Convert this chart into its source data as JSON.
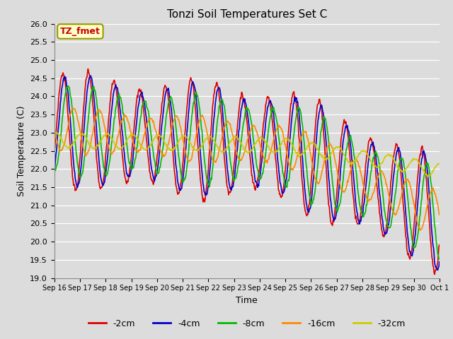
{
  "title": "Tonzi Soil Temperatures Set C",
  "xlabel": "Time",
  "ylabel": "Soil Temperature (C)",
  "ylim": [
    19.0,
    26.0
  ],
  "yticks": [
    19.0,
    19.5,
    20.0,
    20.5,
    21.0,
    21.5,
    22.0,
    22.5,
    23.0,
    23.5,
    24.0,
    24.5,
    25.0,
    25.5,
    26.0
  ],
  "series": {
    "-2cm": {
      "color": "#DD0000",
      "lw": 1.2
    },
    "-4cm": {
      "color": "#0000CC",
      "lw": 1.2
    },
    "-8cm": {
      "color": "#00BB00",
      "lw": 1.2
    },
    "-16cm": {
      "color": "#FF8800",
      "lw": 1.2
    },
    "-32cm": {
      "color": "#CCCC00",
      "lw": 1.2
    }
  },
  "annotation": {
    "text": "TZ_fmet",
    "text_color": "#CC0000",
    "bg_color": "#FFFFCC",
    "border_color": "#999900"
  },
  "background_color": "#DCDCDC",
  "plot_bg_color": "#DCDCDC",
  "x_labels": [
    "Sep 16",
    "Sep 17",
    "Sep 18",
    "Sep 19",
    "Sep 20",
    "Sep 21",
    "Sep 22",
    "Sep 23",
    "Sep 24",
    "Sep 25",
    "Sep 26",
    "Sep 27",
    "Sep 28",
    "Sep 29",
    "Sep 30",
    "Oct 1"
  ]
}
